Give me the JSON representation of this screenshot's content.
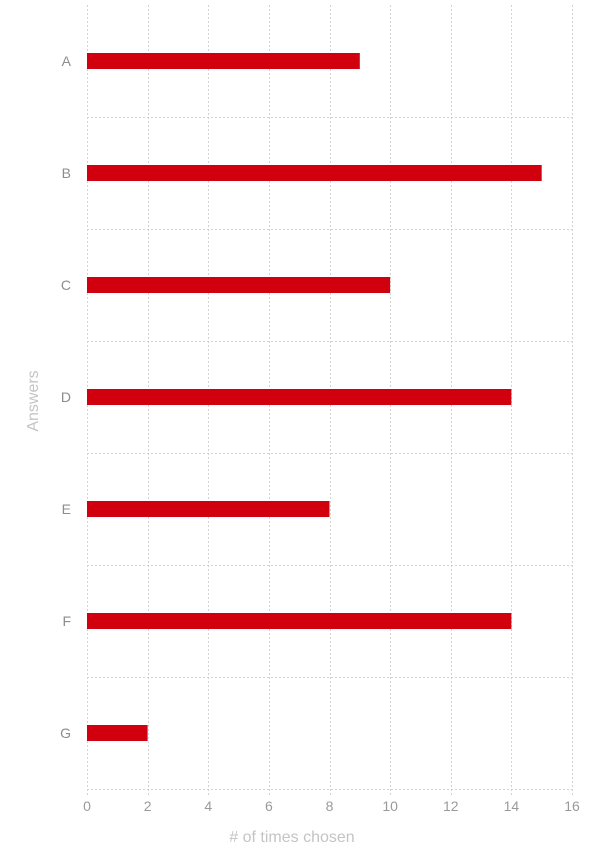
{
  "chart_data": {
    "type": "bar",
    "orientation": "horizontal",
    "categories": [
      "A",
      "B",
      "C",
      "D",
      "E",
      "F",
      "G"
    ],
    "values": [
      9,
      15,
      10,
      14,
      8,
      14,
      2
    ],
    "xlabel": "# of times chosen",
    "ylabel": "Answers",
    "xlim": [
      0,
      16
    ],
    "xticks": [
      "0",
      "2",
      "4",
      "6",
      "8",
      "10",
      "12",
      "14",
      "16"
    ],
    "grid": true,
    "bar_color": "#d0000f"
  }
}
